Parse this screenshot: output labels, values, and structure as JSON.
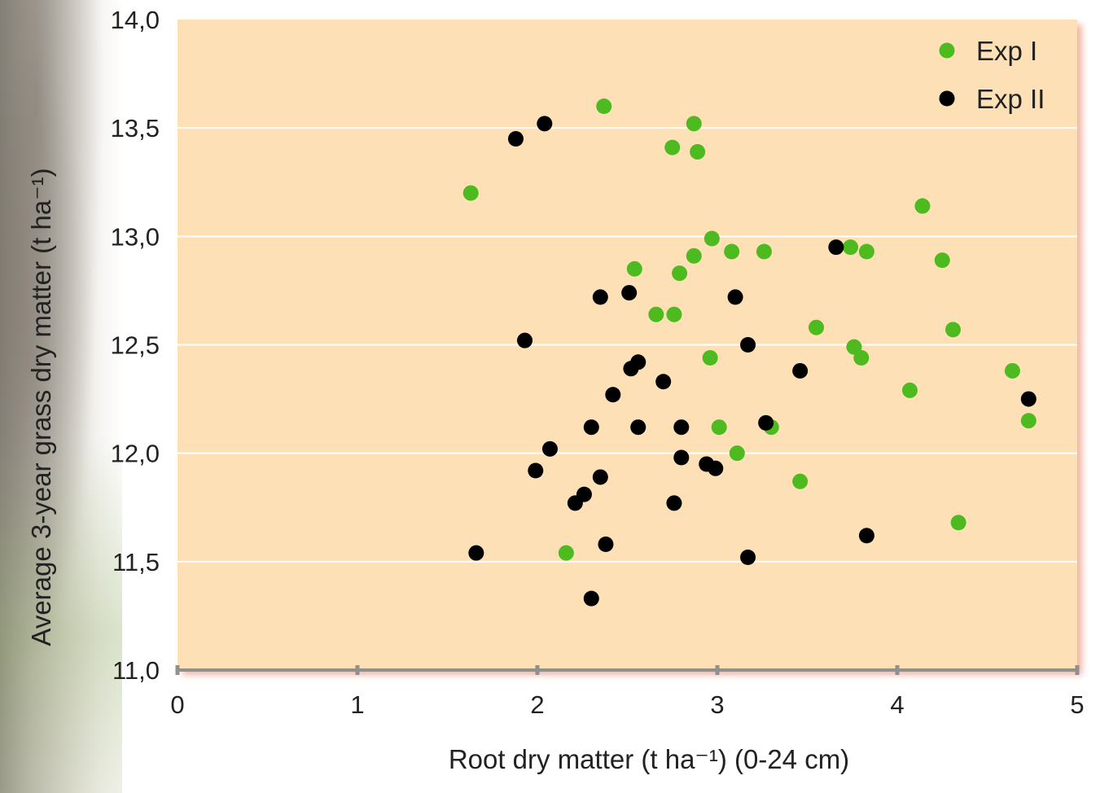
{
  "chart_data": {
    "type": "scatter",
    "title": "",
    "xlabel": "Root dry matter (t ha⁻¹) (0-24 cm)",
    "ylabel": "Average 3-year grass dry matter (t ha⁻¹)",
    "xlim": [
      0,
      5
    ],
    "ylim": [
      11.0,
      14.0
    ],
    "x_ticks": [
      "0",
      "1",
      "2",
      "3",
      "4",
      "5"
    ],
    "y_ticks": [
      "11,0",
      "11,5",
      "12,0",
      "12,5",
      "13,0",
      "13,5",
      "14,0"
    ],
    "grid": "horizontal",
    "legend_position": "top-right",
    "colors": {
      "plot_bg": "#fde0b5",
      "exp1": "#4dbb1f",
      "exp2": "#000000",
      "grid": "#ffffff",
      "axis": "#909090"
    },
    "series": [
      {
        "name": "Exp I",
        "points": [
          [
            2.37,
            13.6
          ],
          [
            2.87,
            13.52
          ],
          [
            2.75,
            13.41
          ],
          [
            2.89,
            13.39
          ],
          [
            1.63,
            13.2
          ],
          [
            4.14,
            13.14
          ],
          [
            2.97,
            12.99
          ],
          [
            3.08,
            12.93
          ],
          [
            3.26,
            12.93
          ],
          [
            3.74,
            12.95
          ],
          [
            3.83,
            12.93
          ],
          [
            2.87,
            12.91
          ],
          [
            4.25,
            12.89
          ],
          [
            2.54,
            12.85
          ],
          [
            2.79,
            12.83
          ],
          [
            2.66,
            12.64
          ],
          [
            2.76,
            12.64
          ],
          [
            3.55,
            12.58
          ],
          [
            4.31,
            12.57
          ],
          [
            3.76,
            12.49
          ],
          [
            3.8,
            12.44
          ],
          [
            2.96,
            12.44
          ],
          [
            4.64,
            12.38
          ],
          [
            4.07,
            12.29
          ],
          [
            4.73,
            12.15
          ],
          [
            3.01,
            12.12
          ],
          [
            3.3,
            12.12
          ],
          [
            3.11,
            12.0
          ],
          [
            3.46,
            11.87
          ],
          [
            4.34,
            11.68
          ],
          [
            2.16,
            11.54
          ]
        ]
      },
      {
        "name": "Exp II",
        "points": [
          [
            2.04,
            13.52
          ],
          [
            1.88,
            13.45
          ],
          [
            3.66,
            12.95
          ],
          [
            2.51,
            12.74
          ],
          [
            2.35,
            12.72
          ],
          [
            3.1,
            12.72
          ],
          [
            1.93,
            12.52
          ],
          [
            3.17,
            12.5
          ],
          [
            2.56,
            12.42
          ],
          [
            2.52,
            12.39
          ],
          [
            3.46,
            12.38
          ],
          [
            2.7,
            12.33
          ],
          [
            2.42,
            12.27
          ],
          [
            4.73,
            12.25
          ],
          [
            3.27,
            12.14
          ],
          [
            2.3,
            12.12
          ],
          [
            2.56,
            12.12
          ],
          [
            2.8,
            12.12
          ],
          [
            2.07,
            12.02
          ],
          [
            2.8,
            11.98
          ],
          [
            2.94,
            11.95
          ],
          [
            2.99,
            11.93
          ],
          [
            1.99,
            11.92
          ],
          [
            2.35,
            11.89
          ],
          [
            2.26,
            11.81
          ],
          [
            2.21,
            11.77
          ],
          [
            2.76,
            11.77
          ],
          [
            3.83,
            11.62
          ],
          [
            2.38,
            11.58
          ],
          [
            1.66,
            11.54
          ],
          [
            3.17,
            11.52
          ],
          [
            2.3,
            11.33
          ]
        ]
      }
    ]
  }
}
